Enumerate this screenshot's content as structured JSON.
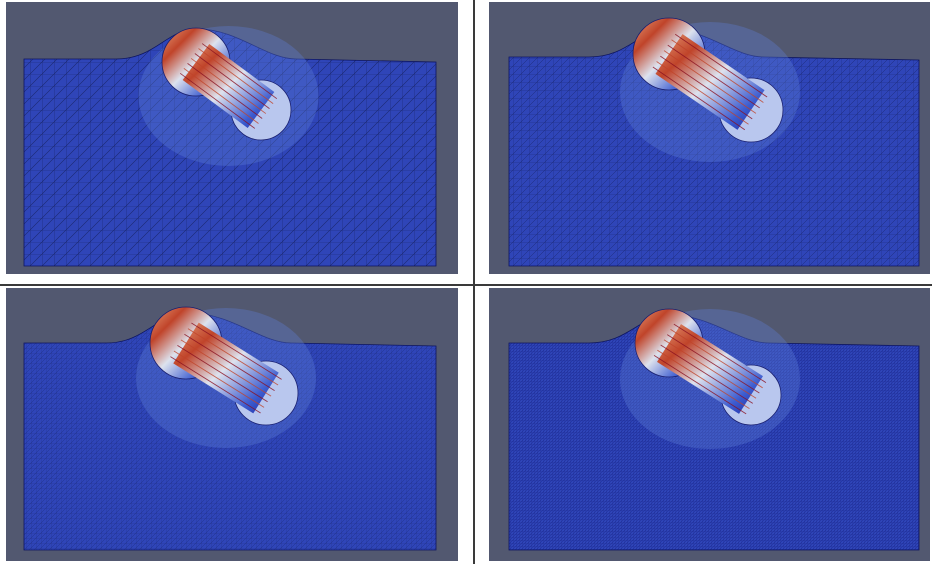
{
  "figure": {
    "layout": "2x2 grid",
    "background_color": "#525870",
    "mesh_color": "#2f45b8",
    "panels": [
      {
        "id": "top-left",
        "mesh_refinement": "coarse",
        "grid_spacing_units": 12
      },
      {
        "id": "top-right",
        "mesh_refinement": "medium",
        "grid_spacing_units": 8
      },
      {
        "id": "bottom-left",
        "mesh_refinement": "fine",
        "grid_spacing_units": 5
      },
      {
        "id": "bottom-right",
        "mesh_refinement": "finest",
        "grid_spacing_units": 3
      }
    ],
    "colormap": [
      "#1a1f9a",
      "#3c5cd0",
      "#dde2ee",
      "#e8a07a",
      "#c0442a",
      "#8a1020"
    ]
  }
}
